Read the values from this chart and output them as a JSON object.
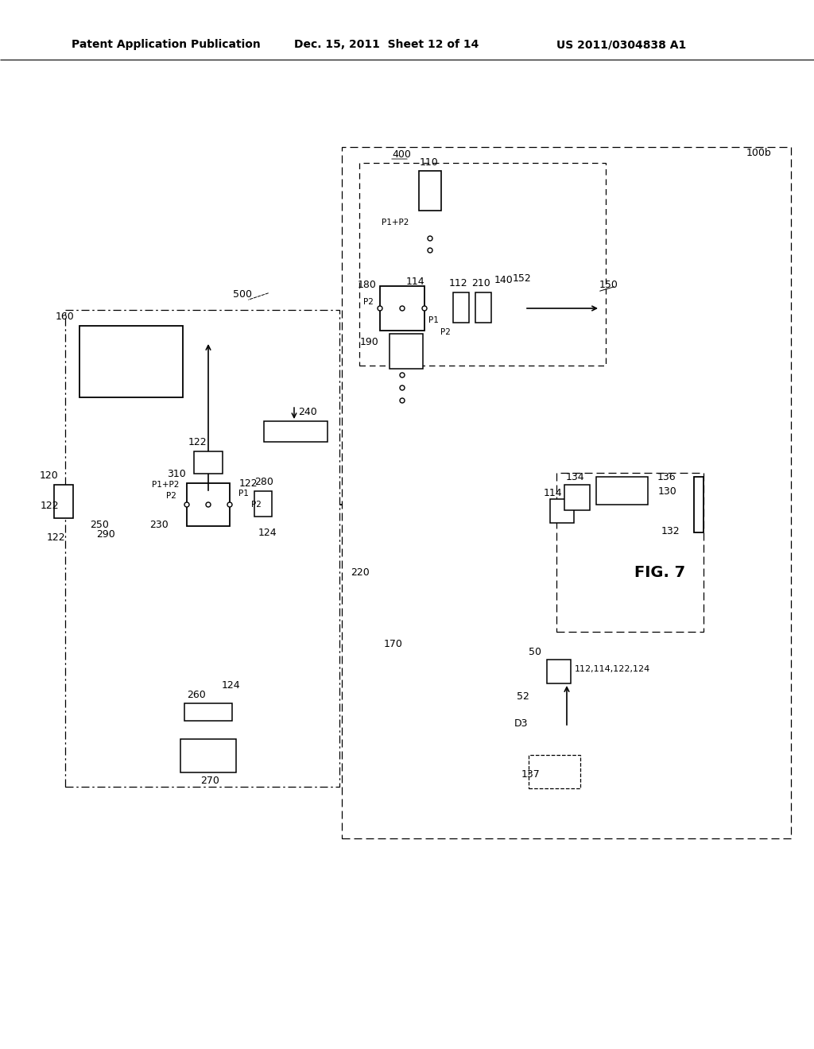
{
  "header_left": "Patent Application Publication",
  "header_mid": "Dec. 15, 2011  Sheet 12 of 14",
  "header_right": "US 2011/0304838 A1",
  "background": "#ffffff"
}
